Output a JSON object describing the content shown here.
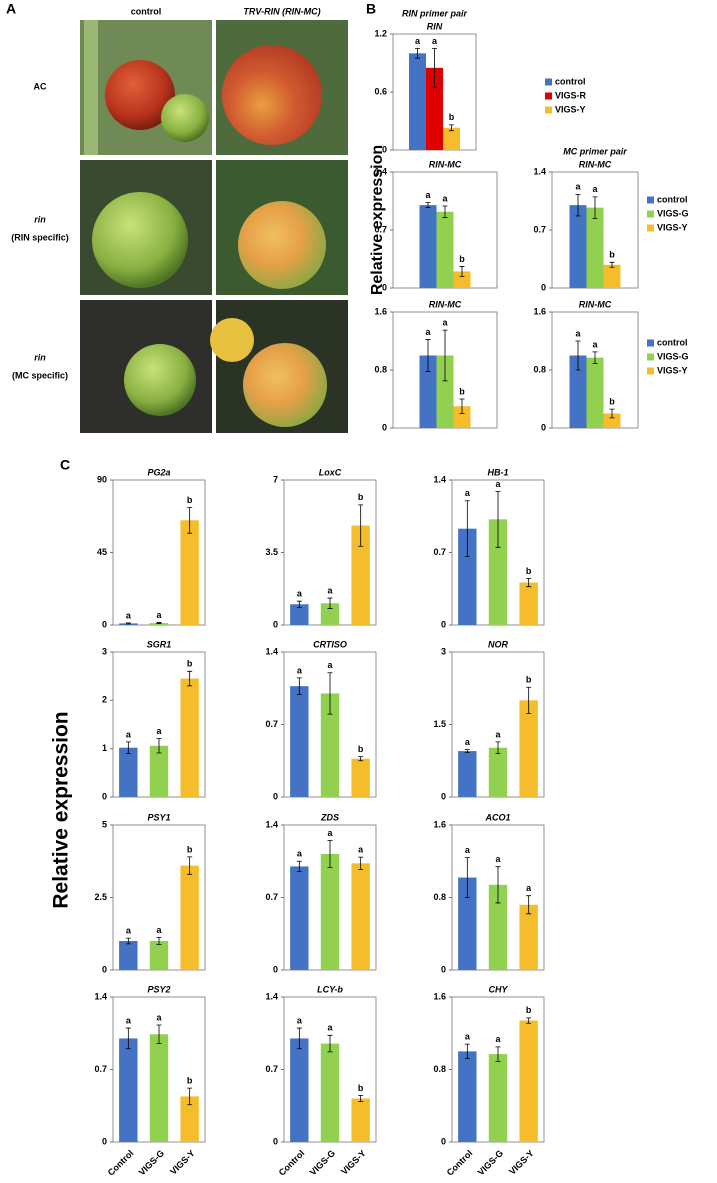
{
  "panel_a": {
    "label": "A",
    "columns": [
      "control",
      "TRV-RIN (RIN-MC)"
    ],
    "rows": [
      [
        "AC"
      ],
      [
        "rin",
        "(RIN specific)"
      ],
      [
        "rin",
        "(MC specific)"
      ]
    ]
  },
  "panel_b": {
    "label": "B",
    "ylabel": "Relative expression"
  },
  "panel_c": {
    "label": "C",
    "ylabel": "Relative expression"
  },
  "chart_data": [
    {
      "type": "bar",
      "group_label": "RIN primer pair",
      "title": "RIN",
      "ylim": [
        0,
        1.2
      ],
      "yticks": [
        0,
        0.6,
        1.2
      ],
      "legend": "right",
      "series": [
        {
          "name": "control",
          "color": "#4472c4",
          "values": [
            1.0
          ],
          "errors": [
            0.05
          ]
        },
        {
          "name": "VIGS-R",
          "color": "#e00000",
          "values": [
            0.85
          ],
          "errors": [
            0.2
          ]
        },
        {
          "name": "VIGS-Y",
          "color": "#f5bd2c",
          "values": [
            0.23
          ],
          "errors": [
            0.03
          ]
        }
      ],
      "annotations": [
        "a",
        "a",
        "b"
      ]
    },
    {
      "type": "bar",
      "title": "RIN-MC",
      "ylim": [
        0,
        1.4
      ],
      "yticks": [
        0,
        0.7,
        1.4
      ],
      "values": [
        1.0,
        0.92,
        0.2
      ],
      "errors": [
        0.03,
        0.07,
        0.06
      ],
      "colors": [
        "#4472c4",
        "#92d050",
        "#f5bd2c"
      ],
      "annotations": [
        "a",
        "a",
        "b"
      ]
    },
    {
      "type": "bar",
      "group_label": "MC primer pair",
      "title": "RIN-MC",
      "ylim": [
        0,
        1.4
      ],
      "yticks": [
        0,
        0.7,
        1.4
      ],
      "legend": "right",
      "series": [
        {
          "name": "control",
          "color": "#4472c4",
          "values": [
            1.0
          ],
          "errors": [
            0.13
          ]
        },
        {
          "name": "VIGS-G",
          "color": "#92d050",
          "values": [
            0.97
          ],
          "errors": [
            0.13
          ]
        },
        {
          "name": "VIGS-Y",
          "color": "#f5bd2c",
          "values": [
            0.28
          ],
          "errors": [
            0.03
          ]
        }
      ],
      "annotations": [
        "a",
        "a",
        "b"
      ]
    },
    {
      "type": "bar",
      "title": "RIN-MC",
      "ylim": [
        0,
        1.6
      ],
      "yticks": [
        0,
        0.8,
        1.6
      ],
      "values": [
        1.0,
        1.0,
        0.3
      ],
      "errors": [
        0.22,
        0.35,
        0.1
      ],
      "colors": [
        "#4472c4",
        "#92d050",
        "#f5bd2c"
      ],
      "annotations": [
        "a",
        "a",
        "b"
      ]
    },
    {
      "type": "bar",
      "title": "RIN-MC",
      "ylim": [
        0,
        1.6
      ],
      "yticks": [
        0,
        0.8,
        1.6
      ],
      "legend": "right",
      "series": [
        {
          "name": "control",
          "color": "#4472c4",
          "values": [
            1.0
          ],
          "errors": [
            0.2
          ]
        },
        {
          "name": "VIGS-G",
          "color": "#92d050",
          "values": [
            0.97
          ],
          "errors": [
            0.08
          ]
        },
        {
          "name": "VIGS-Y",
          "color": "#f5bd2c",
          "values": [
            0.2
          ],
          "errors": [
            0.06
          ]
        }
      ],
      "annotations": [
        "a",
        "a",
        "b"
      ]
    },
    {
      "type": "bar",
      "title": "PG2a",
      "ylim": [
        0,
        90
      ],
      "yticks": [
        0,
        45,
        90
      ],
      "values": [
        1.0,
        1.2,
        65
      ],
      "errors": [
        0.3,
        0.3,
        8
      ],
      "colors": [
        "#4472c4",
        "#92d050",
        "#f5bd2c"
      ],
      "annotations": [
        "a",
        "a",
        "b"
      ]
    },
    {
      "type": "bar",
      "title": "LoxC",
      "ylim": [
        0,
        7
      ],
      "yticks": [
        0,
        3.5,
        7
      ],
      "values": [
        1.0,
        1.05,
        4.8
      ],
      "errors": [
        0.15,
        0.25,
        1.0
      ],
      "colors": [
        "#4472c4",
        "#92d050",
        "#f5bd2c"
      ],
      "annotations": [
        "a",
        "a",
        "b"
      ]
    },
    {
      "type": "bar",
      "title": "HB-1",
      "ylim": [
        0,
        1.4
      ],
      "yticks": [
        0,
        0.7,
        1.4
      ],
      "values": [
        0.93,
        1.02,
        0.41
      ],
      "errors": [
        0.27,
        0.27,
        0.04
      ],
      "colors": [
        "#4472c4",
        "#92d050",
        "#f5bd2c"
      ],
      "annotations": [
        "a",
        "a",
        "b"
      ]
    },
    {
      "type": "bar",
      "title": "SGR1",
      "ylim": [
        0,
        3
      ],
      "yticks": [
        0,
        1,
        2,
        3
      ],
      "values": [
        1.02,
        1.06,
        2.45
      ],
      "errors": [
        0.12,
        0.15,
        0.15
      ],
      "colors": [
        "#4472c4",
        "#92d050",
        "#f5bd2c"
      ],
      "annotations": [
        "a",
        "a",
        "b"
      ]
    },
    {
      "type": "bar",
      "title": "CRTISO",
      "ylim": [
        0,
        1.4
      ],
      "yticks": [
        0,
        0.7,
        1.4
      ],
      "values": [
        1.07,
        1.0,
        0.37
      ],
      "errors": [
        0.08,
        0.2,
        0.02
      ],
      "colors": [
        "#4472c4",
        "#92d050",
        "#f5bd2c"
      ],
      "annotations": [
        "a",
        "a",
        "b"
      ]
    },
    {
      "type": "bar",
      "title": "NOR",
      "ylim": [
        0,
        3
      ],
      "yticks": [
        0,
        1.5,
        3
      ],
      "values": [
        0.95,
        1.02,
        2.0
      ],
      "errors": [
        0.03,
        0.12,
        0.27
      ],
      "colors": [
        "#4472c4",
        "#92d050",
        "#f5bd2c"
      ],
      "annotations": [
        "a",
        "a",
        "b"
      ]
    },
    {
      "type": "bar",
      "title": "PSY1",
      "ylim": [
        0,
        5
      ],
      "yticks": [
        0,
        2.5,
        5
      ],
      "values": [
        1.0,
        1.0,
        3.6
      ],
      "errors": [
        0.1,
        0.12,
        0.3
      ],
      "colors": [
        "#4472c4",
        "#92d050",
        "#f5bd2c"
      ],
      "annotations": [
        "a",
        "a",
        "b"
      ]
    },
    {
      "type": "bar",
      "title": "ZDS",
      "ylim": [
        0,
        1.4
      ],
      "yticks": [
        0,
        0.7,
        1.4
      ],
      "values": [
        1.0,
        1.12,
        1.03
      ],
      "errors": [
        0.05,
        0.13,
        0.06
      ],
      "colors": [
        "#4472c4",
        "#92d050",
        "#f5bd2c"
      ],
      "annotations": [
        "a",
        "a",
        "a"
      ]
    },
    {
      "type": "bar",
      "title": "ACO1",
      "ylim": [
        0,
        1.6
      ],
      "yticks": [
        0,
        0.8,
        1.6
      ],
      "values": [
        1.02,
        0.94,
        0.72
      ],
      "errors": [
        0.22,
        0.2,
        0.1
      ],
      "colors": [
        "#4472c4",
        "#92d050",
        "#f5bd2c"
      ],
      "annotations": [
        "a",
        "a",
        "a"
      ]
    },
    {
      "type": "bar",
      "title": "PSY2",
      "ylim": [
        0,
        1.4
      ],
      "yticks": [
        0,
        0.7,
        1.4
      ],
      "values": [
        1.0,
        1.04,
        0.44
      ],
      "errors": [
        0.1,
        0.09,
        0.08
      ],
      "colors": [
        "#4472c4",
        "#92d050",
        "#f5bd2c"
      ],
      "annotations": [
        "a",
        "a",
        "b"
      ],
      "categories": [
        "Control",
        "VIGS-G",
        "VIGS-Y"
      ]
    },
    {
      "type": "bar",
      "title": "LCY-b",
      "ylim": [
        0,
        1.4
      ],
      "yticks": [
        0,
        0.7,
        1.4
      ],
      "values": [
        1.0,
        0.95,
        0.42
      ],
      "errors": [
        0.1,
        0.08,
        0.03
      ],
      "colors": [
        "#4472c4",
        "#92d050",
        "#f5bd2c"
      ],
      "annotations": [
        "a",
        "a",
        "b"
      ],
      "categories": [
        "Control",
        "VIGS-G",
        "VIGS-Y"
      ]
    },
    {
      "type": "bar",
      "title": "CHY",
      "ylim": [
        0,
        1.6
      ],
      "yticks": [
        0,
        0.8,
        1.6
      ],
      "values": [
        1.0,
        0.97,
        1.34
      ],
      "errors": [
        0.08,
        0.08,
        0.03
      ],
      "colors": [
        "#4472c4",
        "#92d050",
        "#f5bd2c"
      ],
      "annotations": [
        "a",
        "a",
        "b"
      ],
      "categories": [
        "Control",
        "VIGS-G",
        "VIGS-Y"
      ]
    }
  ]
}
